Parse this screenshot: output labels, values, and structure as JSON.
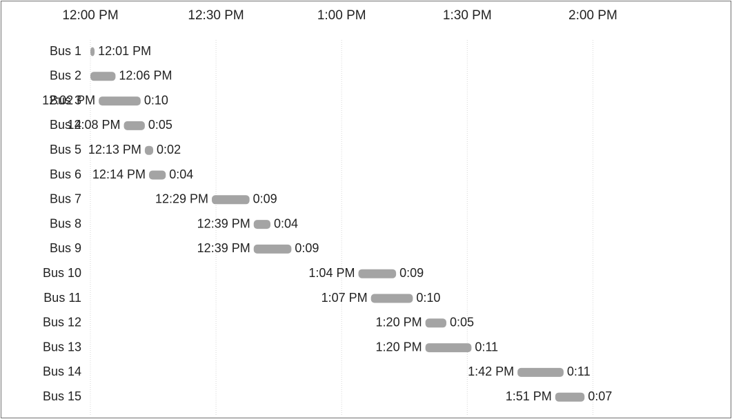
{
  "chart_data": {
    "type": "bar",
    "orientation": "horizontal",
    "title": "",
    "xlabel": "",
    "ylabel": "",
    "x_ticks": [
      "12:00 PM",
      "12:30 PM",
      "1:00 PM",
      "1:30 PM",
      "2:00 PM"
    ],
    "x_tick_position": "top",
    "xlim": [
      "12:00 PM",
      "2:00 PM"
    ],
    "grid": "vertical dotted",
    "legend": "none",
    "bar_color": "#a4a4a4",
    "categories": [
      "Bus 1",
      "Bus 2",
      "Bus 3",
      "Bus 4",
      "Bus 5",
      "Bus 6",
      "Bus 7",
      "Bus 8",
      "Bus 9",
      "Bus 10",
      "Bus 11",
      "Bus 12",
      "Bus 13",
      "Bus 14",
      "Bus 15"
    ],
    "series": [
      {
        "start": [
          "12:00 PM",
          "12:00 PM",
          "12:02 PM",
          "12:08 PM",
          "12:13 PM",
          "12:14 PM",
          "12:29 PM",
          "12:39 PM",
          "12:39 PM",
          "1:04 PM",
          "1:07 PM",
          "1:20 PM",
          "1:20 PM",
          "1:42 PM",
          "1:51 PM"
        ],
        "start_labels": [
          "",
          "",
          "12:02 PM",
          "12:08 PM",
          "12:13 PM",
          "12:14 PM",
          "12:29 PM",
          "12:39 PM",
          "12:39 PM",
          "1:04 PM",
          "1:07 PM",
          "1:20 PM",
          "1:20 PM",
          "1:42 PM",
          "1:51 PM"
        ],
        "duration": [
          "0:01",
          "0:06",
          "0:10",
          "0:05",
          "0:02",
          "0:04",
          "0:09",
          "0:04",
          "0:09",
          "0:09",
          "0:10",
          "0:05",
          "0:11",
          "0:11",
          "0:07"
        ],
        "end_labels": [
          "12:01 PM",
          "12:06 PM",
          "0:10",
          "0:05",
          "0:02",
          "0:04",
          "0:09",
          "0:04",
          "0:09",
          "0:09",
          "0:10",
          "0:05",
          "0:11",
          "0:11",
          "0:07"
        ]
      }
    ]
  }
}
